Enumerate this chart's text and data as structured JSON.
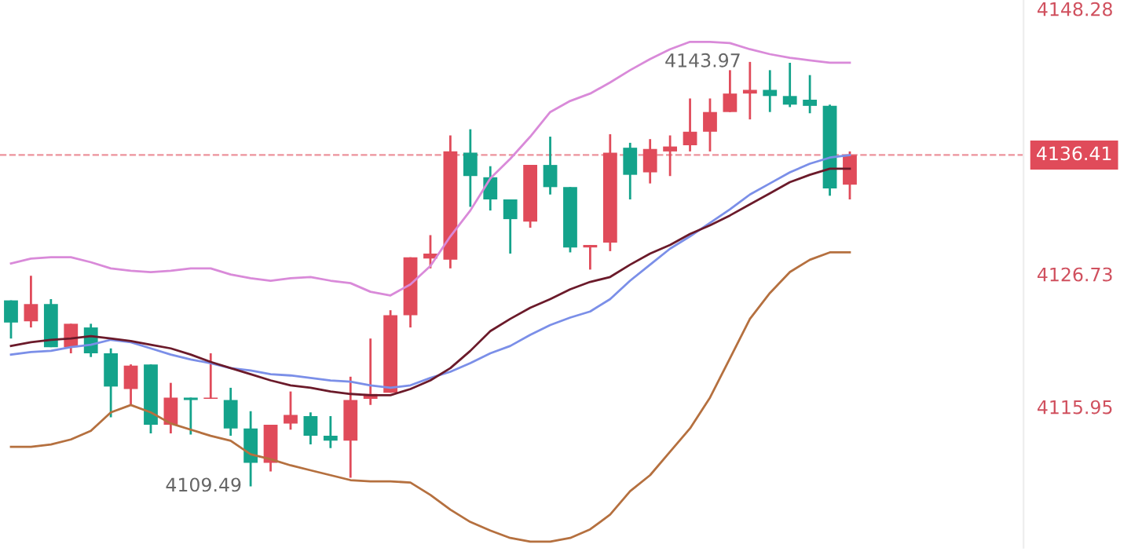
{
  "chart_data": {
    "type": "candlestick",
    "categories": [
      null,
      null,
      null,
      null,
      null,
      null,
      null,
      null,
      null,
      null,
      null,
      null,
      null,
      null,
      null,
      null,
      null,
      null,
      null,
      null,
      null,
      null,
      null,
      null,
      null,
      null,
      null,
      null,
      null,
      null,
      null,
      null,
      null,
      null,
      null,
      null,
      null,
      null,
      null,
      null,
      null,
      null,
      null
    ],
    "ohlc": [
      [
        4124.6,
        4124.6,
        4121.5,
        4122.8
      ],
      [
        4122.9,
        4126.6,
        4122.4,
        4124.3
      ],
      [
        4124.3,
        4124.7,
        4120.8,
        4120.8
      ],
      [
        4120.8,
        4122.7,
        4120.3,
        4122.7
      ],
      [
        4122.4,
        4122.7,
        4120.0,
        4120.3
      ],
      [
        4120.3,
        4120.7,
        4115.1,
        4117.6
      ],
      [
        4117.4,
        4119.4,
        4116.1,
        4119.3
      ],
      [
        4119.4,
        4119.4,
        4113.8,
        4114.5
      ],
      [
        4114.5,
        4117.9,
        4113.8,
        4116.7
      ],
      [
        4116.7,
        4116.7,
        4113.7,
        4116.5
      ],
      [
        4116.6,
        4120.3,
        4116.6,
        4116.7
      ],
      [
        4116.5,
        4117.5,
        4113.6,
        4114.2
      ],
      [
        4114.2,
        4115.6,
        4109.49,
        4111.4
      ],
      [
        4111.4,
        4114.5,
        4110.7,
        4114.5
      ],
      [
        4114.6,
        4117.2,
        4114.1,
        4115.3
      ],
      [
        4115.2,
        4115.5,
        4112.9,
        4113.6
      ],
      [
        4113.6,
        4115.2,
        4112.6,
        4113.2
      ],
      [
        4113.2,
        4118.4,
        4110.2,
        4116.5
      ],
      [
        4116.6,
        4121.5,
        4116.1,
        4117.0
      ],
      [
        4117.1,
        4123.8,
        4117.1,
        4123.4
      ],
      [
        4123.4,
        4128.1,
        4122.4,
        4128.1
      ],
      [
        4128.0,
        4129.9,
        4127.2,
        4128.4
      ],
      [
        4127.9,
        4138.0,
        4127.2,
        4136.7
      ],
      [
        4136.6,
        4138.5,
        4132.2,
        4134.7
      ],
      [
        4134.6,
        4135.5,
        4131.9,
        4132.8
      ],
      [
        4132.8,
        4132.8,
        4128.4,
        4131.2
      ],
      [
        4131.0,
        4135.6,
        4130.5,
        4135.6
      ],
      [
        4135.6,
        4137.9,
        4133.2,
        4133.8
      ],
      [
        4133.8,
        4133.8,
        4128.5,
        4128.9
      ],
      [
        4128.9,
        4129.1,
        4127.1,
        4129.1
      ],
      [
        4129.3,
        4138.1,
        4128.6,
        4136.6
      ],
      [
        4137.0,
        4137.4,
        4132.8,
        4134.8
      ],
      [
        4135.0,
        4137.7,
        4134.1,
        4136.9
      ],
      [
        4136.7,
        4138.0,
        4134.7,
        4137.1
      ],
      [
        4137.2,
        4141.0,
        4136.7,
        4138.3
      ],
      [
        4138.3,
        4141.0,
        4136.7,
        4139.9
      ],
      [
        4139.9,
        4143.3,
        4139.9,
        4141.4
      ],
      [
        4141.4,
        4143.97,
        4139.3,
        4141.7
      ],
      [
        4141.7,
        4143.3,
        4139.9,
        4141.2
      ],
      [
        4141.2,
        4143.9,
        4140.3,
        4140.5
      ],
      [
        4140.9,
        4142.9,
        4139.8,
        4140.4
      ],
      [
        4140.4,
        4140.5,
        4133.1,
        4133.7
      ],
      [
        4134.0,
        4136.7,
        4132.8,
        4136.41
      ]
    ],
    "colors": [
      "#14a38b",
      "#e04b5a",
      "#14a38b",
      "#e04b5a",
      "#14a38b",
      "#14a38b",
      "#e04b5a",
      "#14a38b",
      "#e04b5a",
      "#14a38b",
      "#e04b5a",
      "#14a38b",
      "#14a38b",
      "#e04b5a",
      "#e04b5a",
      "#14a38b",
      "#14a38b",
      "#e04b5a",
      "#e04b5a",
      "#e04b5a",
      "#e04b5a",
      "#e04b5a",
      "#e04b5a",
      "#14a38b",
      "#14a38b",
      "#14a38b",
      "#e04b5a",
      "#14a38b",
      "#14a38b",
      "#e04b5a",
      "#e04b5a",
      "#14a38b",
      "#e04b5a",
      "#e04b5a",
      "#e04b5a",
      "#e04b5a",
      "#e04b5a",
      "#e04b5a",
      "#14a38b",
      "#14a38b",
      "#14a38b",
      "#14a38b",
      "#e04b5a"
    ],
    "series": [
      {
        "type": "line",
        "color": "#d98ad9",
        "values": [
          4127.6,
          4128.0,
          4128.1,
          4128.1,
          4127.7,
          4127.2,
          4127.0,
          4126.9,
          4127.0,
          4127.2,
          4127.2,
          4126.7,
          4126.4,
          4126.2,
          4126.4,
          4126.5,
          4126.2,
          4126.0,
          4125.3,
          4125.0,
          4125.9,
          4127.4,
          4129.8,
          4131.9,
          4134.5,
          4136.1,
          4137.9,
          4139.9,
          4140.8,
          4141.4,
          4142.3,
          4143.3,
          4144.2,
          4145.0,
          4145.6,
          4145.6,
          4145.5,
          4145.0,
          4144.6,
          4144.3,
          4144.1,
          4143.9,
          4143.9
        ]
      },
      {
        "type": "line",
        "color": "#b5703f",
        "values": [
          4112.7,
          4112.7,
          4112.9,
          4113.3,
          4114.0,
          4115.5,
          4116.1,
          4115.5,
          4114.6,
          4114.1,
          4113.6,
          4113.2,
          4112.1,
          4111.7,
          4111.2,
          4110.8,
          4110.4,
          4110.0,
          4109.9,
          4109.9,
          4109.8,
          4108.8,
          4107.6,
          4106.6,
          4105.9,
          4105.3,
          4105.0,
          4105.0,
          4105.3,
          4106.0,
          4107.2,
          4109.1,
          4110.4,
          4112.3,
          4114.2,
          4116.7,
          4119.9,
          4123.1,
          4125.2,
          4126.9,
          4127.9,
          4128.5,
          4128.5
        ]
      },
      {
        "type": "line",
        "color": "#7b8fe8",
        "values": [
          4120.2,
          4120.4,
          4120.5,
          4120.8,
          4121.0,
          4121.4,
          4121.2,
          4120.7,
          4120.2,
          4119.8,
          4119.5,
          4119.1,
          4118.9,
          4118.6,
          4118.5,
          4118.3,
          4118.1,
          4118.0,
          4117.7,
          4117.5,
          4117.7,
          4118.3,
          4118.8,
          4119.5,
          4120.3,
          4120.9,
          4121.8,
          4122.6,
          4123.2,
          4123.7,
          4124.7,
          4126.2,
          4127.5,
          4128.8,
          4129.8,
          4130.9,
          4132.0,
          4133.2,
          4134.1,
          4135.0,
          4135.7,
          4136.2,
          4136.4
        ]
      },
      {
        "type": "line",
        "color": "#6b1a2a",
        "values": [
          4120.9,
          4121.2,
          4121.4,
          4121.5,
          4121.7,
          4121.5,
          4121.3,
          4121.0,
          4120.7,
          4120.2,
          4119.6,
          4119.1,
          4118.6,
          4118.1,
          4117.7,
          4117.5,
          4117.2,
          4117.0,
          4116.9,
          4116.9,
          4117.4,
          4118.1,
          4119.1,
          4120.5,
          4122.1,
          4123.1,
          4124.0,
          4124.7,
          4125.5,
          4126.1,
          4126.5,
          4127.5,
          4128.4,
          4129.1,
          4130.0,
          4130.7,
          4131.5,
          4132.4,
          4133.3,
          4134.2,
          4134.8,
          4135.3,
          4135.3
        ]
      }
    ],
    "ylim": [
      4104.5,
      4149.0
    ],
    "yticks": [
      4148.28,
      4126.73,
      4115.95
    ],
    "ref_lines": [
      {
        "axis": "y",
        "value": 4136.41,
        "label": "4136.41",
        "color": "#e04b5a",
        "line_style": "dashed"
      }
    ],
    "annotations": [
      "4143.97",
      "4109.49"
    ],
    "tick_labels": "y",
    "grid": false,
    "legend": false
  }
}
